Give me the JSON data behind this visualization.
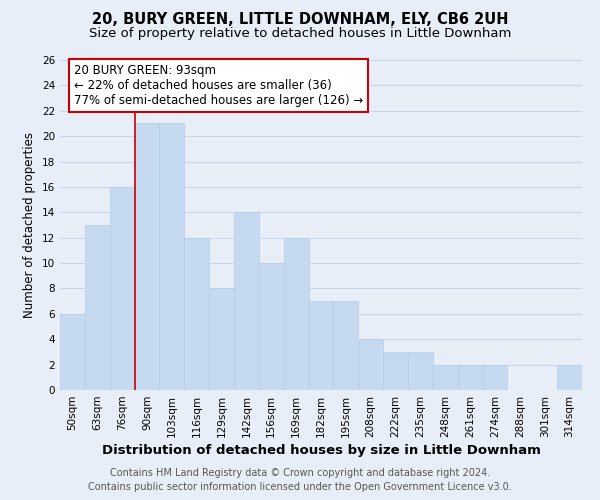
{
  "title": "20, BURY GREEN, LITTLE DOWNHAM, ELY, CB6 2UH",
  "subtitle": "Size of property relative to detached houses in Little Downham",
  "xlabel": "Distribution of detached houses by size in Little Downham",
  "ylabel": "Number of detached properties",
  "bar_labels": [
    "50sqm",
    "63sqm",
    "76sqm",
    "90sqm",
    "103sqm",
    "116sqm",
    "129sqm",
    "142sqm",
    "156sqm",
    "169sqm",
    "182sqm",
    "195sqm",
    "208sqm",
    "222sqm",
    "235sqm",
    "248sqm",
    "261sqm",
    "274sqm",
    "288sqm",
    "301sqm",
    "314sqm"
  ],
  "bar_values": [
    6,
    13,
    16,
    21,
    21,
    12,
    8,
    14,
    10,
    12,
    7,
    7,
    4,
    3,
    3,
    2,
    2,
    2,
    0,
    0,
    2
  ],
  "bar_color": "#c5d9f1",
  "bar_edge_color": "#b8cce4",
  "highlight_index": 3,
  "highlight_line_color": "#cc0000",
  "annotation_box_text": "20 BURY GREEN: 93sqm\n← 22% of detached houses are smaller (36)\n77% of semi-detached houses are larger (126) →",
  "annotation_box_edge_color": "#cc0000",
  "annotation_box_face_color": "#ffffff",
  "ylim": [
    0,
    26
  ],
  "yticks": [
    0,
    2,
    4,
    6,
    8,
    10,
    12,
    14,
    16,
    18,
    20,
    22,
    24,
    26
  ],
  "grid_color": "#c8d4e8",
  "background_color": "#e8eef8",
  "footer_text": "Contains HM Land Registry data © Crown copyright and database right 2024.\nContains public sector information licensed under the Open Government Licence v3.0.",
  "title_fontsize": 10.5,
  "subtitle_fontsize": 9.5,
  "xlabel_fontsize": 9.5,
  "ylabel_fontsize": 8.5,
  "tick_fontsize": 7.5,
  "annotation_fontsize": 8.5,
  "footer_fontsize": 7.0
}
